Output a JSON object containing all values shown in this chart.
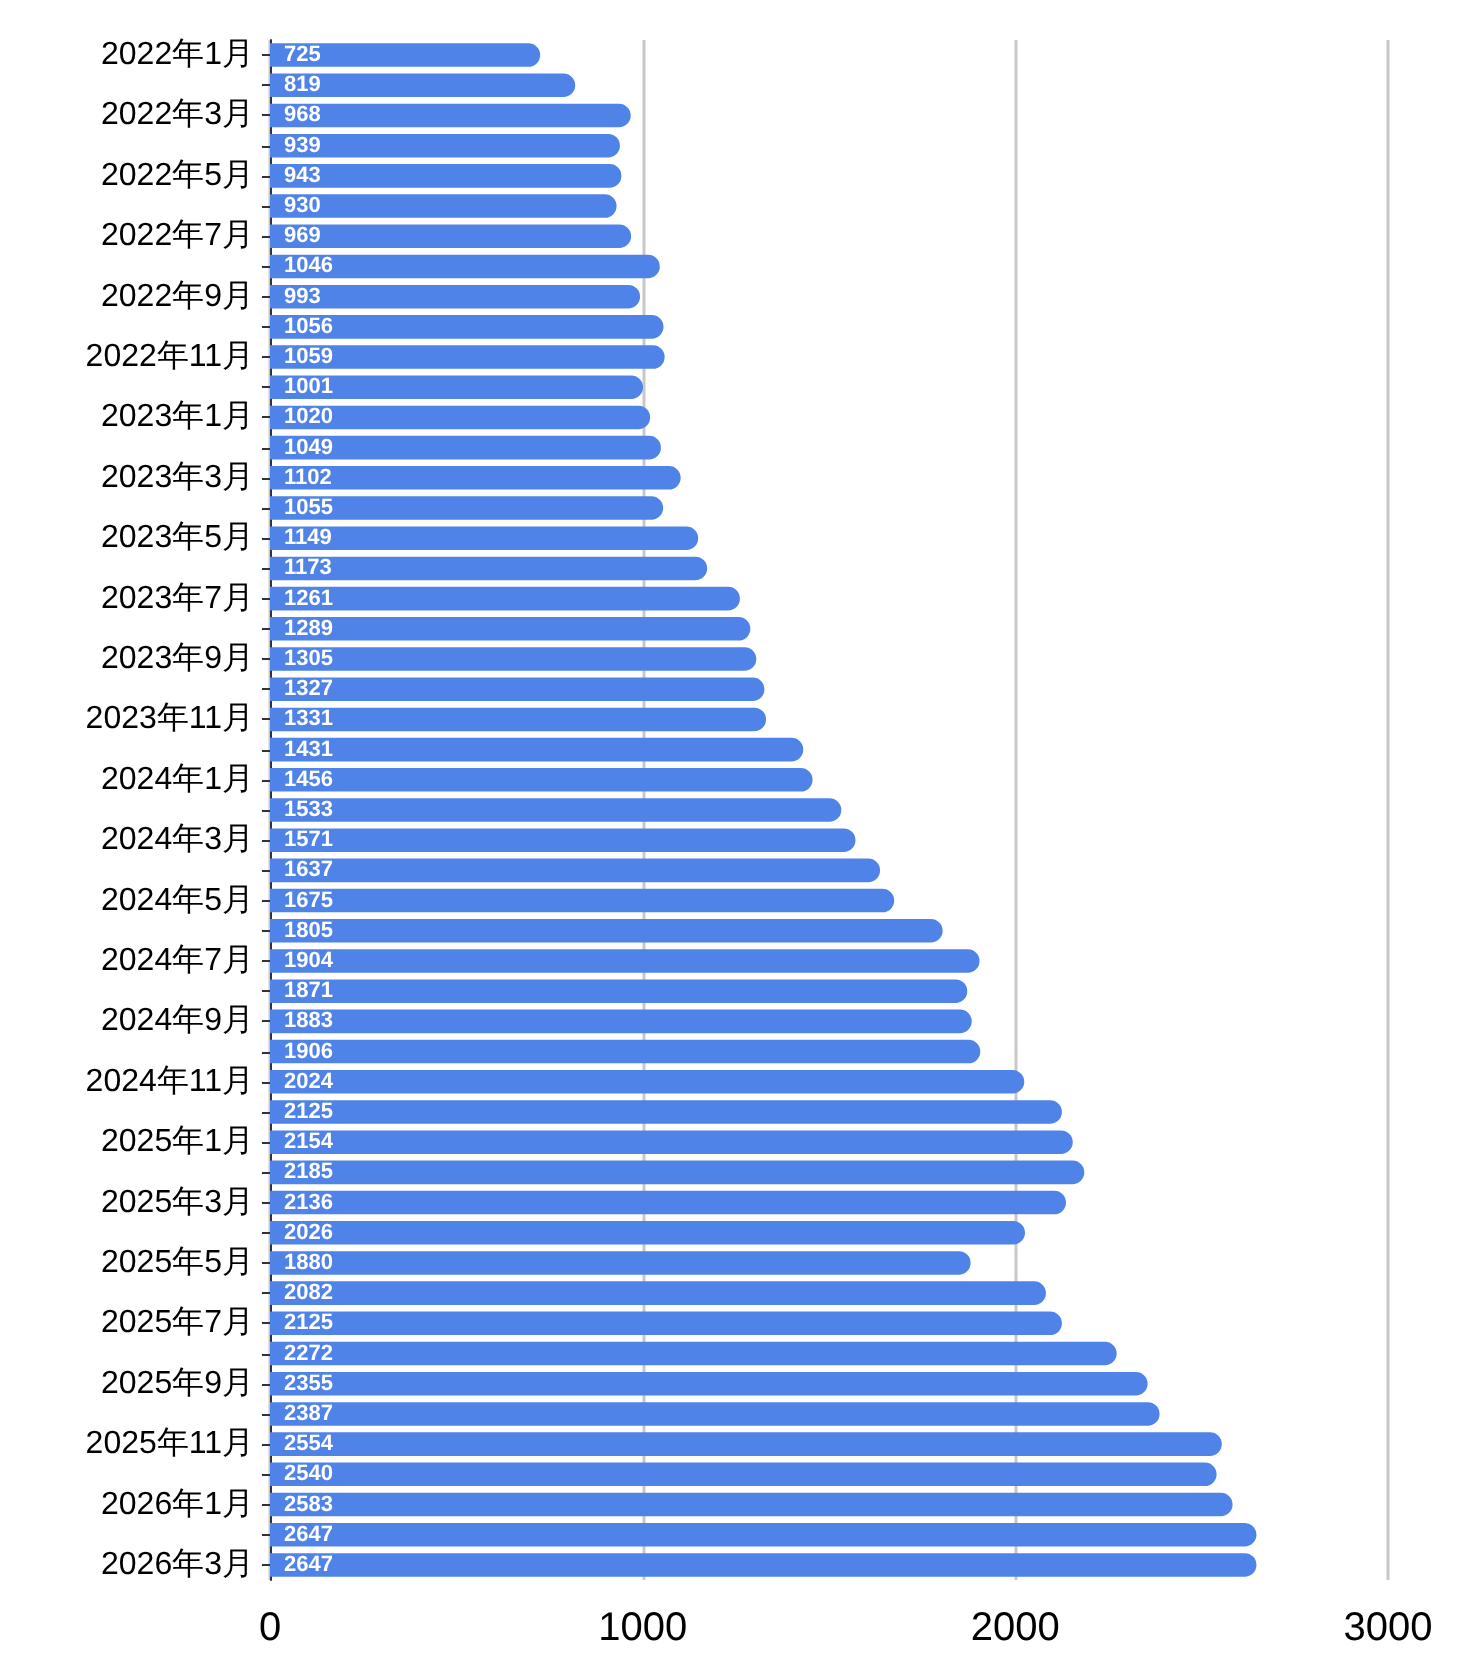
{
  "chart_data": {
    "type": "bar",
    "orientation": "horizontal",
    "categories": [
      "2022年1月",
      null,
      "2022年3月",
      null,
      "2022年5月",
      null,
      "2022年7月",
      null,
      "2022年9月",
      null,
      "2022年11月",
      null,
      "2023年1月",
      null,
      "2023年3月",
      null,
      "2023年5月",
      null,
      "2023年7月",
      null,
      "2023年9月",
      null,
      "2023年11月",
      null,
      "2024年1月",
      null,
      "2024年3月",
      null,
      "2024年5月",
      null,
      "2024年7月",
      null,
      "2024年9月",
      null,
      "2024年11月",
      null,
      "2025年1月",
      null,
      "2025年3月",
      null,
      "2025年5月",
      null,
      "2025年7月",
      null,
      "2025年9月",
      null,
      "2025年11月",
      null,
      "2026年1月",
      null,
      "2026年3月"
    ],
    "values": [
      725,
      819,
      968,
      939,
      943,
      930,
      969,
      1046,
      993,
      1056,
      1059,
      1001,
      1020,
      1049,
      1102,
      1055,
      1149,
      1173,
      1261,
      1289,
      1305,
      1327,
      1331,
      1431,
      1456,
      1533,
      1571,
      1637,
      1675,
      1805,
      1904,
      1871,
      1883,
      1906,
      2024,
      2125,
      2154,
      2185,
      2136,
      2026,
      1880,
      2082,
      2125,
      2272,
      2355,
      2387,
      2554,
      2540,
      2583,
      2647,
      2647
    ],
    "color": "#5083e8",
    "xlim": [
      0,
      3000
    ],
    "xticks": [
      0,
      1000,
      2000,
      3000
    ],
    "grid": "x",
    "data_labels": true
  }
}
